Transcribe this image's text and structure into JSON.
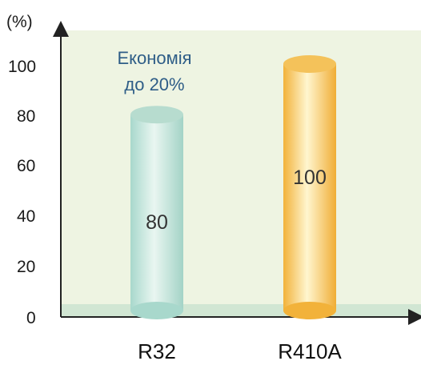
{
  "chart_data": {
    "type": "bar",
    "categories": [
      "R32",
      "R410A"
    ],
    "values": [
      80,
      100
    ],
    "value_labels": [
      "80",
      "100"
    ],
    "y_unit": "(%)",
    "yticks": [
      "100",
      "80",
      "60",
      "40",
      "20",
      "0"
    ],
    "ylim": [
      0,
      110
    ],
    "annotation": [
      "Економія",
      "до 20%"
    ],
    "grid": false,
    "bar_style": "cylinder",
    "colors": {
      "plot_bg": "#eef4e2",
      "baseline_band": "#d1e6d3",
      "axis": "#222222",
      "r32": [
        "#a8d8cc",
        "#e9f6f1",
        "#b7dccf"
      ],
      "r410a": [
        "#f2b23a",
        "#fff6cf",
        "#f4c25a"
      ]
    }
  }
}
